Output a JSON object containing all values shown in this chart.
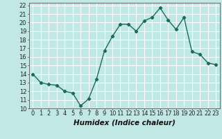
{
  "x": [
    0,
    1,
    2,
    3,
    4,
    5,
    6,
    7,
    8,
    9,
    10,
    11,
    12,
    13,
    14,
    15,
    16,
    17,
    18,
    19,
    20,
    21,
    22,
    23
  ],
  "y": [
    14,
    13,
    12.8,
    12.7,
    12,
    11.8,
    10.3,
    11.1,
    13.4,
    16.7,
    18.4,
    19.8,
    19.8,
    19.0,
    20.2,
    20.6,
    21.7,
    20.3,
    19.2,
    20.6,
    16.6,
    16.3,
    15.3,
    15.1
  ],
  "line_color": "#1a6b5a",
  "marker": "D",
  "marker_size": 2.2,
  "line_width": 1.0,
  "bg_color": "#c2e8e5",
  "grid_color": "#ffffff",
  "xlabel": "Humidex (Indice chaleur)",
  "xlabel_fontsize": 7.5,
  "tick_fontsize": 6.0,
  "xlim": [
    -0.5,
    23.5
  ],
  "ylim": [
    10,
    22.3
  ],
  "yticks": [
    10,
    11,
    12,
    13,
    14,
    15,
    16,
    17,
    18,
    19,
    20,
    21,
    22
  ],
  "xticks": [
    0,
    1,
    2,
    3,
    4,
    5,
    6,
    7,
    8,
    9,
    10,
    11,
    12,
    13,
    14,
    15,
    16,
    17,
    18,
    19,
    20,
    21,
    22,
    23
  ]
}
